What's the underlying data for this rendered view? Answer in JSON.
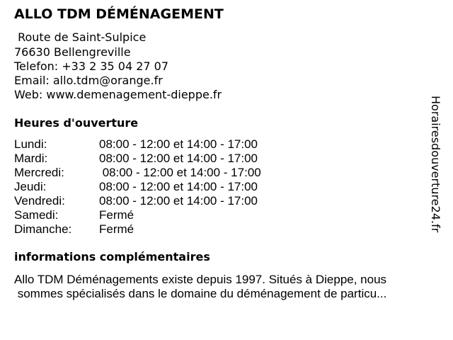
{
  "business": {
    "name": "ALLO TDM DÉMÉNAGEMENT",
    "street": " Route de Saint-Sulpice",
    "city": "76630 Bellengreville",
    "phone": "Telefon: +33 2 35 04 27 07",
    "email": "Email: allo.tdm@orange.fr",
    "web": "Web: www.demenagement-dieppe.fr"
  },
  "hours": {
    "heading": "Heures d'ouverture",
    "rows": [
      {
        "day": "Lundi:",
        "time": "08:00 - 12:00 et 14:00 - 17:00"
      },
      {
        "day": "Mardi:",
        "time": "08:00 - 12:00 et 14:00 - 17:00"
      },
      {
        "day": "Mercredi:",
        "time": " 08:00 - 12:00 et 14:00 - 17:00"
      },
      {
        "day": "Jeudi:",
        "time": "08:00 - 12:00 et 14:00 - 17:00"
      },
      {
        "day": "Vendredi:",
        "time": "08:00 - 12:00 et 14:00 - 17:00"
      },
      {
        "day": "Samedi:",
        "time": "Fermé"
      },
      {
        "day": "Dimanche:",
        "time": "Fermé"
      }
    ]
  },
  "info": {
    "heading": "informations complémentaires",
    "line1": "Allo TDM Déménagements existe depuis 1997. Situés à Dieppe, nous",
    "line2": " sommes spécialisés dans le domaine du déménagement de particu..."
  },
  "watermark": "Horairesdouverture24.fr"
}
